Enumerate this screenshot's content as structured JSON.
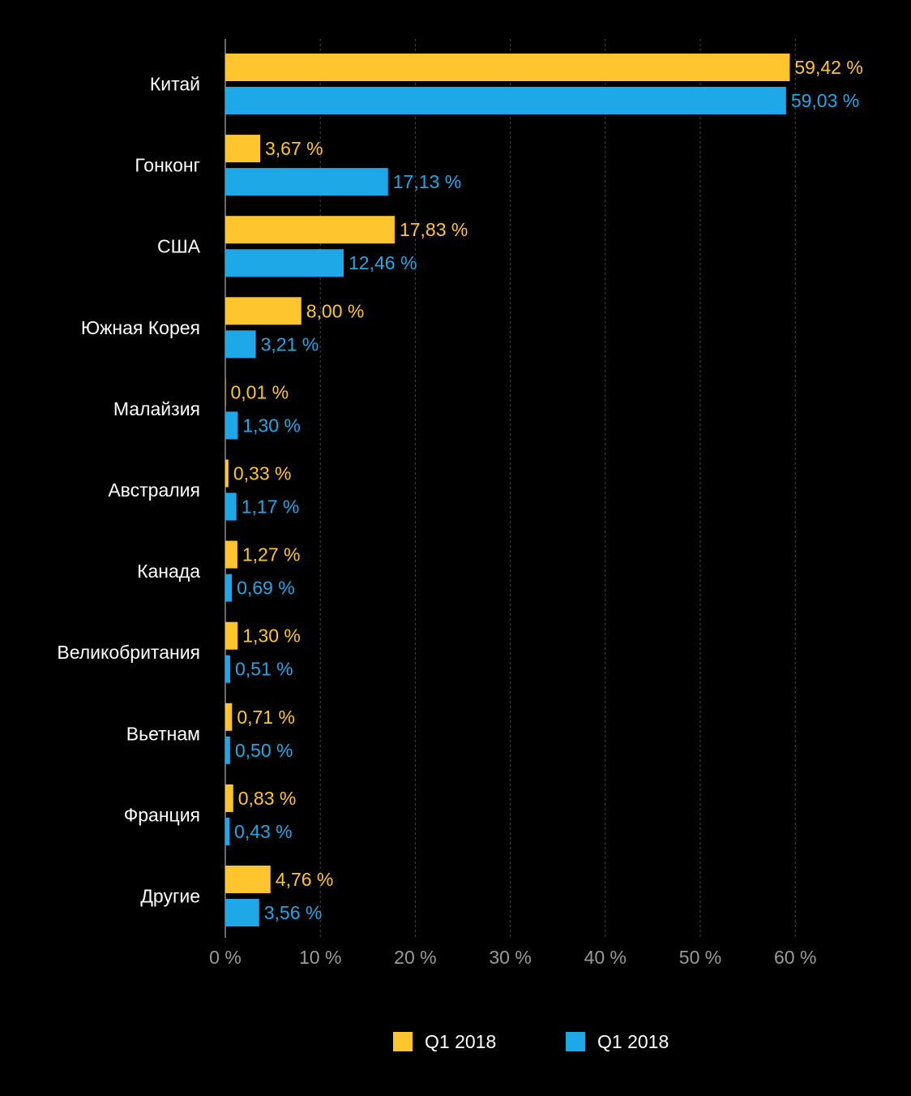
{
  "chart_data": {
    "type": "bar",
    "orientation": "horizontal",
    "title": "",
    "xlabel": "",
    "ylabel": "",
    "categories": [
      "Китай",
      "Гонконг",
      "США",
      "Южная Корея",
      "Малайзия",
      "Австралия",
      "Канада",
      "Великобритания",
      "Вьетнам",
      "Франция",
      "Другие"
    ],
    "series": [
      {
        "name": "Q1 2018",
        "color": "#fec52e",
        "values": [
          59.42,
          3.67,
          17.83,
          8.0,
          0.01,
          0.33,
          1.27,
          1.3,
          0.71,
          0.83,
          4.76
        ],
        "labels": [
          "59,42 %",
          "3,67 %",
          "17,83 %",
          "8,00 %",
          "0,01 %",
          "0,33 %",
          "1,27 %",
          "1,30 %",
          "0,71 %",
          "0,83 %",
          "4,76 %"
        ]
      },
      {
        "name": "Q1 2018",
        "color": "#1ea8e7",
        "values": [
          59.03,
          17.13,
          12.46,
          3.21,
          1.3,
          1.17,
          0.69,
          0.51,
          0.5,
          0.43,
          3.56
        ],
        "labels": [
          "59,03 %",
          "17,13 %",
          "12,46 %",
          "3,21 %",
          "1,30 %",
          "1,17 %",
          "0,69 %",
          "0,51 %",
          "0,50 %",
          "0,43 %",
          "3,56 %"
        ]
      }
    ],
    "xlim": [
      0,
      60
    ],
    "xticks": [
      0,
      10,
      20,
      30,
      40,
      50,
      60
    ],
    "xtick_labels": [
      "0 %",
      "10 %",
      "20 %",
      "30 %",
      "40 %",
      "50 %",
      "60 %"
    ],
    "grid": true,
    "legend_position": "bottom"
  },
  "colors": {
    "background": "#000000",
    "gridline": "#444444",
    "axis": "#8a8a8a",
    "category_text": "#ffffff",
    "tick_text": "#9a9a9a"
  }
}
